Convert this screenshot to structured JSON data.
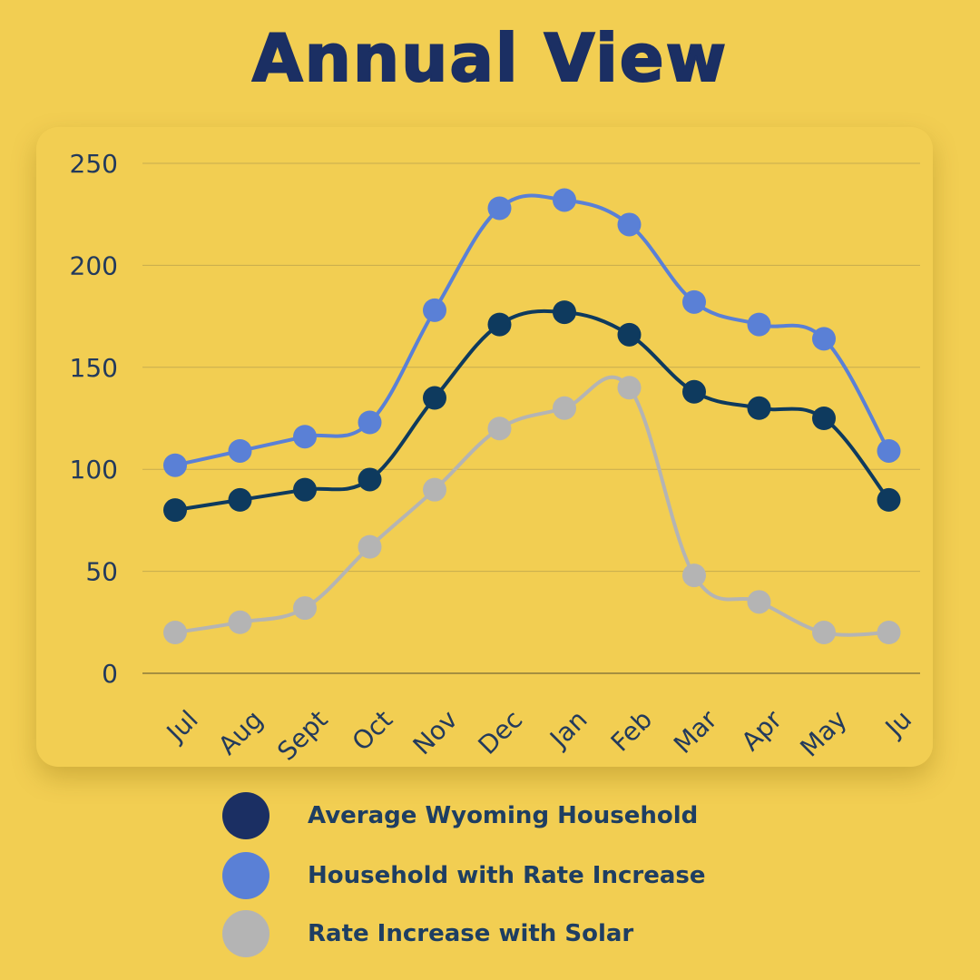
{
  "title": "Annual View",
  "chart_data": {
    "type": "line",
    "categories": [
      "Jul",
      "Aug",
      "Sept",
      "Oct",
      "Nov",
      "Dec",
      "Jan",
      "Feb",
      "Mar",
      "Apr",
      "May",
      "Ju"
    ],
    "series": [
      {
        "name": "Average Wyoming Household",
        "color": "#0E3A5E",
        "legend_color": "#1B2F63",
        "values": [
          80,
          85,
          90,
          95,
          135,
          171,
          177,
          166,
          138,
          130,
          125,
          85
        ]
      },
      {
        "name": "Household with Rate Increase",
        "color": "#5A80D6",
        "legend_color": "#5A80D6",
        "values": [
          102,
          109,
          116,
          123,
          178,
          228,
          232,
          220,
          182,
          171,
          164,
          109
        ]
      },
      {
        "name": "Rate Increase with Solar",
        "color": "#B4B4B4",
        "legend_color": "#B4B4B4",
        "values": [
          20,
          25,
          32,
          62,
          90,
          120,
          130,
          140,
          48,
          35,
          20,
          20
        ]
      }
    ],
    "ylim": [
      0,
      250
    ],
    "yticks": [
      0,
      50,
      100,
      150,
      200,
      250
    ],
    "grid": true,
    "legend_position": "bottom"
  }
}
